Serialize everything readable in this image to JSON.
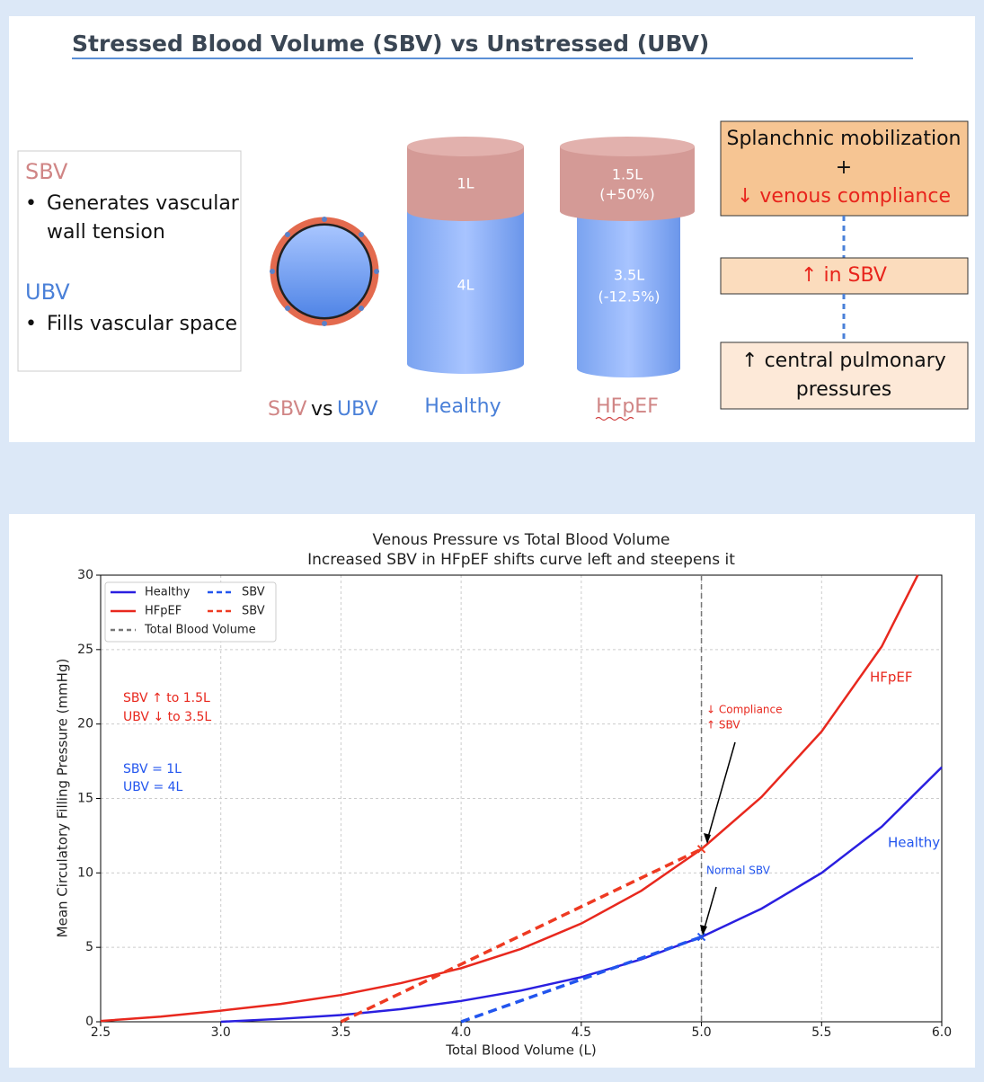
{
  "slide": {
    "title": "Stressed Blood Volume (SBV) vs Unstressed (UBV)",
    "legend": {
      "sbv_heading": "SBV",
      "sbv_bullet_1": "Generates vascular",
      "sbv_bullet_2": "wall tension",
      "ubv_heading": "UBV",
      "ubv_bullet": "Fills vascular space"
    },
    "circle_caption": {
      "sbv": "SBV",
      "vs": "vs",
      "ubv": "UBV"
    },
    "healthy": {
      "top": "1L",
      "bottom": "4L",
      "label": "Healthy"
    },
    "hfpef": {
      "top_1": "1.5L",
      "top_2": "(+50%)",
      "bottom_1": "3.5L",
      "bottom_2": "(-12.5%)",
      "label": "HFpEF"
    },
    "flow": {
      "box_1": [
        "Splanchnic mobilization",
        "+",
        "↓ venous compliance"
      ],
      "box_2": "↑ in SBV",
      "box_3": [
        "↑ central pulmonary",
        "pressures"
      ]
    }
  },
  "chart_data": {
    "type": "line",
    "title": "Venous Pressure vs Total Blood Volume",
    "subtitle": "Increased SBV in HFpEF shifts curve left and steepens it",
    "x_label": "Total Blood Volume (L)",
    "y_label": "Mean Circulatory Filling Pressure (mmHg)",
    "xlim": [
      2.5,
      6.0
    ],
    "ylim": [
      0,
      30
    ],
    "xticks": [
      2.5,
      {
        "value": 3.0,
        "label": "3.0"
      },
      3.5,
      {
        "value": 4.0,
        "label": "4.0"
      },
      4.5,
      {
        "value": 5.0,
        "label": "5.0"
      },
      5.5,
      {
        "value": 6.0,
        "label": "6.0"
      }
    ],
    "yticks": [
      0,
      5,
      10,
      15,
      20,
      25,
      30
    ],
    "grid": true,
    "legend_position": "upper left",
    "series": [
      {
        "name": "Healthy",
        "color": "#2a1fe0",
        "style": "solid",
        "x": [
          3.0,
          3.25,
          3.5,
          3.75,
          4.0,
          4.25,
          4.5,
          4.75,
          5.0,
          5.25,
          5.5,
          5.75,
          6.0
        ],
        "values": [
          0,
          0.2,
          0.45,
          0.85,
          1.4,
          2.1,
          3.0,
          4.2,
          5.7,
          7.6,
          10.0,
          13.1,
          17.1
        ]
      },
      {
        "name": "SBV",
        "color": "#2255ee",
        "style": "dashed",
        "marker": "x",
        "x": [
          4.0,
          5.0
        ],
        "values": [
          0,
          5.7
        ]
      },
      {
        "name": "HFpEF",
        "color": "#e8281e",
        "style": "solid",
        "x": [
          2.5,
          2.75,
          3.0,
          3.25,
          3.5,
          3.75,
          4.0,
          4.25,
          4.5,
          4.75,
          5.0,
          5.25,
          5.5,
          5.75,
          5.9
        ],
        "values": [
          0.05,
          0.35,
          0.75,
          1.2,
          1.8,
          2.6,
          3.6,
          4.9,
          6.6,
          8.8,
          11.6,
          15.1,
          19.5,
          25.2,
          30
        ]
      },
      {
        "name": "SBV",
        "color": "#ee3a22",
        "style": "dashed",
        "marker": "x",
        "x": [
          3.5,
          5.0
        ],
        "values": [
          0,
          11.6
        ]
      }
    ],
    "vline": {
      "name": "Total Blood Volume",
      "x": 5.0,
      "color": "#777777"
    },
    "annotations": {
      "hfpef_change_1": "SBV ↑ to 1.5L",
      "hfpef_change_2": "UBV ↓ to 3.5L",
      "healthy_sbv": "SBV = 1L",
      "healthy_ubv": "UBV = 4L",
      "compliance_1": "↓ Compliance",
      "compliance_2": "↑ SBV",
      "normal": "Normal SBV",
      "hfpef_curve": "HFpEF",
      "healthy_curve": "Healthy"
    }
  }
}
